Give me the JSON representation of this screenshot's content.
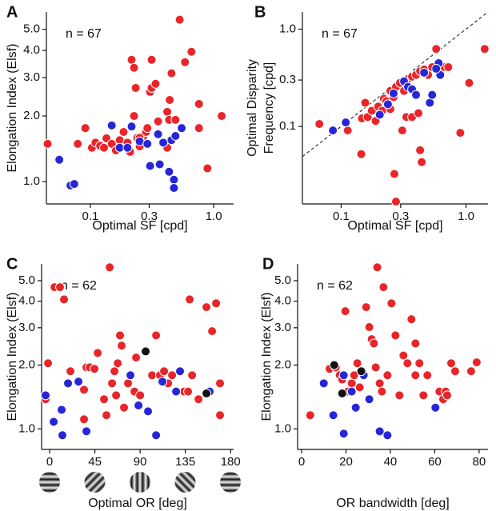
{
  "chart_data": [
    {
      "type": "scatter",
      "panel_label": "A",
      "annotation": "n = 67",
      "xlabel": "Optimal SF [cpd]",
      "ylabel": [
        "Elongation Index (Elsf)"
      ],
      "xscale": "log",
      "yscale": "log",
      "xlim": [
        0.044,
        1.45
      ],
      "ylim": [
        0.79,
        6.0
      ],
      "xticks": [
        0.1,
        0.3,
        {
          "value": 1,
          "label": "1.0"
        }
      ],
      "yticks": [
        {
          "value": 1,
          "label": "1.0"
        },
        {
          "value": 2,
          "label": "2.0"
        },
        {
          "value": 3,
          "label": "3.0"
        },
        {
          "value": 4,
          "label": "4.0"
        },
        {
          "value": 5,
          "label": "5.0"
        }
      ],
      "series": [
        {
          "color": "#e8262a",
          "x": [
            0.045,
            0.079,
            0.091,
            0.103,
            0.11,
            0.12,
            0.129,
            0.135,
            0.149,
            0.161,
            0.173,
            0.186,
            0.2,
            0.21,
            0.226,
            0.24,
            0.251,
            0.27,
            0.283,
            0.216,
            0.226,
            0.233,
            0.251,
            0.29,
            0.305,
            0.314,
            0.338,
            0.314,
            0.354,
            0.42,
            0.42,
            0.435,
            0.44,
            0.455,
            0.49,
            0.53,
            0.55,
            0.585,
            0.66,
            0.76,
            0.76,
            0.89,
            1.16
          ],
          "values": [
            1.49,
            1.49,
            1.76,
            1.43,
            1.51,
            1.46,
            1.43,
            1.58,
            1.49,
            1.39,
            1.55,
            1.69,
            1.51,
            1.37,
            2.0,
            1.59,
            1.45,
            1.62,
            1.69,
            3.62,
            3.33,
            2.69,
            1.59,
            1.76,
            2.58,
            2.69,
            2.81,
            3.62,
            1.89,
            1.43,
            2.09,
            1.92,
            2.37,
            3.14,
            1.92,
            5.53,
            1.76,
            3.53,
            3.94,
            2.27,
            1.76,
            1.15,
            2.0
          ]
        },
        {
          "color": "#2626d6",
          "x": [
            0.056,
            0.069,
            0.074,
            0.149,
            0.173,
            0.2,
            0.216,
            0.251,
            0.29,
            0.305,
            0.354,
            0.365,
            0.39,
            0.455,
            0.49,
            0.435,
            0.476,
            0.476,
            0.55
          ],
          "values": [
            1.26,
            0.96,
            0.975,
            1.81,
            1.43,
            1.43,
            1.79,
            1.53,
            1.49,
            1.18,
            1.65,
            1.2,
            1.51,
            1.55,
            1.62,
            1.11,
            1.02,
            0.935,
            1.76
          ]
        }
      ]
    },
    {
      "type": "scatter",
      "panel_label": "B",
      "annotation": "n = 67",
      "xlabel": "Optimal SF [cpd]",
      "ylabel": [
        "Optimal Disparity",
        "Frequency [cpd]"
      ],
      "xscale": "log",
      "yscale": "log",
      "diagonal_line": true,
      "xlim": [
        0.049,
        1.5
      ],
      "ylim": [
        0.016,
        1.5
      ],
      "xticks": [
        0.1,
        0.3,
        {
          "value": 1,
          "label": "1.0"
        }
      ],
      "yticks": [
        0.1,
        0.3,
        {
          "value": 1,
          "label": "1.0"
        }
      ],
      "series": [
        {
          "color": "#e8262a",
          "x": [
            0.067,
            0.113,
            0.147,
            0.156,
            0.163,
            0.176,
            0.189,
            0.198,
            0.213,
            0.22,
            0.23,
            0.248,
            0.263,
            0.275,
            0.296,
            0.319,
            0.343,
            0.37,
            0.398,
            0.429,
            0.462,
            0.497,
            0.536,
            0.577,
            0.604,
            0.622,
            0.67,
            0.721,
            1.06,
            0.9,
            1.41,
            0.145,
            0.267,
            0.309,
            0.333,
            0.37,
            0.416,
            0.429,
            0.442,
            0.275,
            0.248
          ],
          "values": [
            0.106,
            0.091,
            0.121,
            0.175,
            0.125,
            0.145,
            0.114,
            0.16,
            0.145,
            0.193,
            0.182,
            0.232,
            0.2,
            0.255,
            0.28,
            0.232,
            0.307,
            0.325,
            0.338,
            0.371,
            0.385,
            0.338,
            0.407,
            0.626,
            0.371,
            0.385,
            0.407,
            0.407,
            0.28,
            0.086,
            0.626,
            0.052,
            0.0325,
            0.091,
            0.125,
            0.125,
            0.137,
            0.057,
            0.043,
            0.0169,
            0.151
          ]
        },
        {
          "color": "#2626d6",
          "x": [
            0.086,
            0.109,
            0.204,
            0.237,
            0.263,
            0.319,
            0.343,
            0.37,
            0.398,
            0.462,
            0.513,
            0.536,
            0.604,
            0.622,
            0.577
          ],
          "values": [
            0.091,
            0.11,
            0.132,
            0.169,
            0.219,
            0.291,
            0.255,
            0.241,
            0.211,
            0.357,
            0.175,
            0.211,
            0.447,
            0.338,
            0.392
          ]
        }
      ]
    },
    {
      "type": "scatter",
      "panel_label": "C",
      "annotation": "n = 62",
      "xlabel": "Optimal OR [deg]",
      "ylabel": [
        "Elongation Index (Elsf)"
      ],
      "xscale": "linear",
      "yscale": "log",
      "xlim": [
        -8,
        183
      ],
      "ylim": [
        0.8,
        6.0
      ],
      "xticks": [
        0,
        45,
        90,
        135,
        180
      ],
      "yticks": [
        {
          "value": 1,
          "label": "1.0"
        },
        {
          "value": 2,
          "label": "2.0"
        },
        {
          "value": 3,
          "label": "3.0"
        },
        {
          "value": 4,
          "label": "4.0"
        },
        {
          "value": 5,
          "label": "5.0"
        }
      ],
      "series": [
        {
          "color": "#e8262a",
          "x": [
            -1.6,
            -4.0,
            4.8,
            10.3,
            14.3,
            20.7,
            34.2,
            34.2,
            36.6,
            39.8,
            44.6,
            47.8,
            54.1,
            56.5,
            59.7,
            62.1,
            64.5,
            66.1,
            67.7,
            70.0,
            71.6,
            74.0,
            78.0,
            84.4,
            86.0,
            90.0,
            101.9,
            105.9,
            109.8,
            113.8,
            117.8,
            121.8,
            133.7,
            137.7,
            139.3,
            141.7,
            148.1,
            156.0,
            161.6,
            165.6,
            169.5,
            169.5
          ],
          "values": [
            2.04,
            1.38,
            4.66,
            4.66,
            4.08,
            1.87,
            1.11,
            1.53,
            1.95,
            1.95,
            1.92,
            2.28,
            1.38,
            1.16,
            5.78,
            1.64,
            1.87,
            1.44,
            2.04,
            2.76,
            2.47,
            1.26,
            1.64,
            1.5,
            2.17,
            1.44,
            1.79,
            2.76,
            1.79,
            1.87,
            1.64,
            1.79,
            1.5,
            1.5,
            4.08,
            1.79,
            1.38,
            3.75,
            2.89,
            3.91,
            1.16,
            1.64
          ]
        },
        {
          "color": "#2626d6",
          "x": [
            -4.0,
            4.0,
            11.9,
            12.7,
            18.3,
            28.7,
            36.6,
            80.4,
            88.4,
            97.9,
            105.9,
            112.2,
            125.8,
            129.7,
            159.2
          ],
          "values": [
            1.44,
            1.08,
            1.23,
            0.933,
            1.64,
            1.67,
            0.974,
            1.79,
            1.29,
            1.21,
            0.933,
            1.67,
            1.5,
            1.87,
            1.5
          ]
        },
        {
          "color": "#111111",
          "x": [
            95.5,
            156.0
          ],
          "values": [
            2.32,
            1.47
          ]
        }
      ]
    },
    {
      "type": "scatter",
      "panel_label": "D",
      "annotation": "n = 62",
      "xlabel": "OR bandwidth [deg]",
      "ylabel": [
        "Elongation Index (Elsf)"
      ],
      "xscale": "linear",
      "yscale": "log",
      "xlim": [
        -1.8,
        84
      ],
      "ylim": [
        0.8,
        6.0
      ],
      "xticks": [
        0,
        20,
        40,
        60,
        80
      ],
      "yticks": [
        {
          "value": 1,
          "label": "1.0"
        },
        {
          "value": 2,
          "label": "2.0"
        },
        {
          "value": 3,
          "label": "3.0"
        },
        {
          "value": 4,
          "label": "4.0"
        },
        {
          "value": 5,
          "label": "5.0"
        }
      ],
      "series": [
        {
          "color": "#e8262a",
          "x": [
            3.9,
            12.6,
            15.4,
            17.2,
            18.3,
            19.7,
            20.8,
            22.6,
            23.7,
            25.1,
            26.2,
            29.1,
            30.5,
            31.6,
            32.6,
            33.4,
            34.1,
            35.2,
            36.2,
            36.9,
            38.7,
            40.5,
            42.3,
            44.1,
            45.9,
            47.7,
            49.5,
            51.3,
            51.3,
            53.1,
            54.9,
            56.7,
            62.1,
            63.8,
            64.9,
            65.6,
            67.4,
            69.2,
            76.4,
            78.9
          ],
          "values": [
            1.16,
            1.92,
            1.95,
            1.79,
            1.71,
            3.59,
            1.5,
            1.64,
            1.79,
            2.04,
            1.57,
            3.75,
            3.02,
            2.65,
            2.53,
            1.95,
            5.78,
            1.64,
            1.5,
            4.66,
            1.79,
            3.91,
            2.76,
            1.44,
            2.22,
            2.04,
            3.29,
            2.53,
            1.79,
            2.04,
            1.44,
            1.79,
            1.5,
            1.38,
            1.5,
            1.44,
            2.04,
            1.87,
            1.87,
            2.06
          ]
        },
        {
          "color": "#2626d6",
          "x": [
            10.0,
            14.3,
            19.0,
            19.0,
            22.6,
            24.4,
            28.0,
            30.5,
            35.2,
            38.7,
            60.3
          ],
          "values": [
            1.64,
            1.16,
            0.95,
            1.79,
            1.5,
            1.26,
            1.79,
            1.38,
            0.974,
            0.933,
            1.26
          ]
        },
        {
          "color": "#111111",
          "x": [
            14.7,
            18.3,
            26.9
          ],
          "values": [
            2.0,
            1.47,
            1.87
          ]
        }
      ]
    }
  ]
}
